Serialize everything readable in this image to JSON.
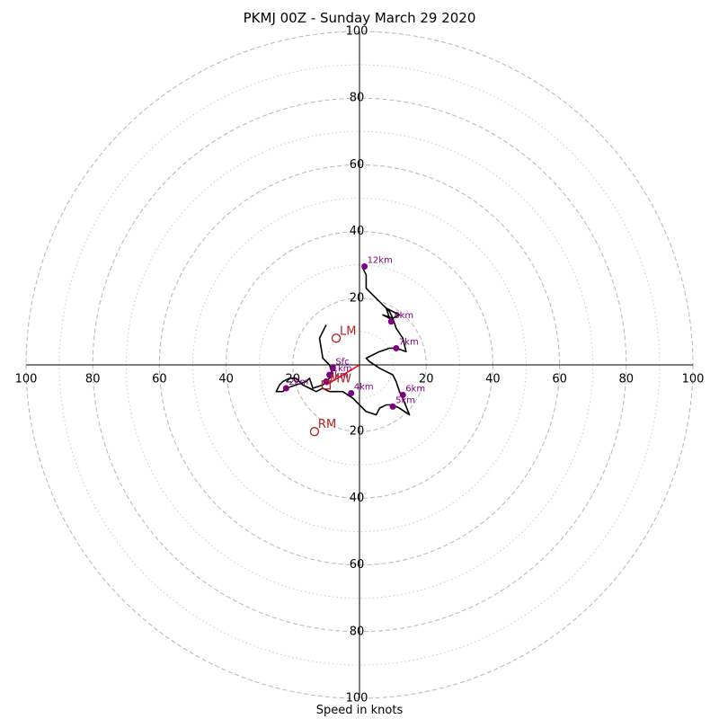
{
  "chart_data": {
    "type": "scatter",
    "title": "PKMJ 00Z - Sunday March 29 2020",
    "xlabel": "Speed in knots",
    "ylabel": "",
    "axis_range": [
      -100,
      100
    ],
    "ring_labels": [
      100,
      80,
      60,
      40,
      20
    ],
    "rings_dashed": [
      20,
      40,
      60,
      80,
      100
    ],
    "rings_dotted": [
      10,
      30,
      50,
      70,
      90
    ],
    "grid": true,
    "hodograph_trace": [
      [
        -10,
        12
      ],
      [
        -12,
        8
      ],
      [
        -11,
        2
      ],
      [
        -9,
        0
      ],
      [
        -8,
        -3
      ],
      [
        -11,
        -6
      ],
      [
        -14,
        -7
      ],
      [
        -15,
        -4
      ],
      [
        -16,
        -5
      ],
      [
        -19,
        -6
      ],
      [
        -22,
        -7
      ],
      [
        -23,
        -8
      ],
      [
        -25,
        -8
      ],
      [
        -24,
        -6
      ],
      [
        -23,
        -5
      ],
      [
        -21,
        -4
      ],
      [
        -19,
        -4
      ],
      [
        -17,
        -6
      ],
      [
        -15,
        -7
      ],
      [
        -13,
        -8
      ],
      [
        -11,
        -7
      ],
      [
        -9,
        -8
      ],
      [
        -5,
        -8
      ],
      [
        -2,
        -10
      ],
      [
        0,
        -12
      ],
      [
        2,
        -14
      ],
      [
        5,
        -15
      ],
      [
        6,
        -13
      ],
      [
        8,
        -12
      ],
      [
        10,
        -12
      ],
      [
        12,
        -13
      ],
      [
        15,
        -15
      ],
      [
        13,
        -10
      ],
      [
        12,
        -8
      ],
      [
        11,
        -5
      ],
      [
        10,
        -3
      ],
      [
        6,
        -1
      ],
      [
        3,
        1
      ],
      [
        2,
        2
      ],
      [
        4,
        3
      ],
      [
        6,
        4
      ],
      [
        9,
        5
      ],
      [
        11,
        5
      ],
      [
        14,
        4
      ],
      [
        13,
        8
      ],
      [
        11,
        11
      ],
      [
        10,
        14
      ],
      [
        9,
        16
      ],
      [
        8,
        17
      ],
      [
        9,
        14
      ],
      [
        7,
        15
      ],
      [
        10,
        14
      ],
      [
        12,
        15
      ],
      [
        8,
        17
      ],
      [
        3,
        22
      ],
      [
        2,
        23
      ],
      [
        2,
        27
      ],
      [
        1,
        29
      ],
      [
        1,
        30
      ]
    ],
    "height_markers": [
      {
        "label": "Sfc",
        "u": -8,
        "v": -1
      },
      {
        "label": "1km",
        "u": -9,
        "v": -3
      },
      {
        "label": "2km",
        "u": -22,
        "v": -7
      },
      {
        "label": "3km",
        "u": -10,
        "v": -5
      },
      {
        "label": "4km",
        "u": -2.5,
        "v": -8.5
      },
      {
        "label": "5km",
        "u": 10,
        "v": -12.5
      },
      {
        "label": "6km",
        "u": 13,
        "v": -9
      },
      {
        "label": "7km",
        "u": 11,
        "v": 5
      },
      {
        "label": "8km",
        "u": 9.5,
        "v": 13
      },
      {
        "label": "12km",
        "u": 1.5,
        "v": 29.5
      }
    ],
    "storm_motions": [
      {
        "label": "LM",
        "u": -7,
        "v": 8
      },
      {
        "label": "RM",
        "u": -13.5,
        "v": -20
      }
    ],
    "mean_wind": {
      "label": "MW",
      "u": -10,
      "v": -6
    },
    "shear_vector": {
      "from_u": -10,
      "from_v": -6,
      "to_u": 0,
      "to_v": 0
    },
    "colors": {
      "trace": "#000000",
      "marker": "#800080",
      "storm_motion": "#b22222",
      "shear": "#ff0000",
      "grid": "#bbbbbb"
    }
  }
}
